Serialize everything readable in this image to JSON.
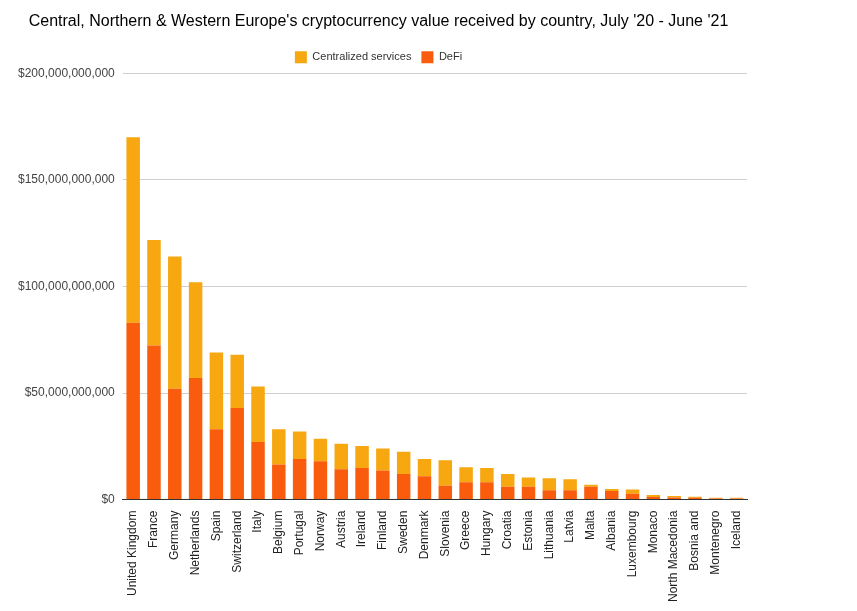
{
  "chart_data": {
    "type": "bar",
    "title": "Central, Northern & Western Europe's cryptocurrency value received by country, July '20 - June '21",
    "categories": [
      "United Kingdom",
      "France",
      "Germany",
      "Netherlands",
      "Spain",
      "Switzerland",
      "Italy",
      "Belgium",
      "Portugal",
      "Norway",
      "Austria",
      "Ireland",
      "Finland",
      "Sweden",
      "Denmark",
      "Slovenia",
      "Greece",
      "Hungary",
      "Croatia",
      "Estonia",
      "Lithuania",
      "Latvia",
      "Malta",
      "Albania",
      "Luxembourg",
      "Monaco",
      "North Macedonia",
      "Bosnia and",
      "Montenegro",
      "Iceland"
    ],
    "series": [
      {
        "name": "Centralized services",
        "color": "#F7A70F",
        "values": [
          87000000000,
          49500000000,
          62000000000,
          45000000000,
          36000000000,
          25000000000,
          26000000000,
          16500000000,
          13000000000,
          10500000000,
          12000000000,
          10400000000,
          10300000000,
          10500000000,
          8000000000,
          12000000000,
          7000000000,
          6600000000,
          6000000000,
          4400000000,
          5600000000,
          5100000000,
          1000000000,
          1000000000,
          2000000000,
          1000000000,
          700000000,
          500000000,
          400000000,
          400000000
        ]
      },
      {
        "name": "DeFi",
        "color": "#F95C0C",
        "values": [
          83000000000,
          72300000000,
          52000000000,
          57000000000,
          33000000000,
          43000000000,
          27000000000,
          16500000000,
          19000000000,
          18000000000,
          14200000000,
          14800000000,
          13700000000,
          12000000000,
          11000000000,
          6500000000,
          8200000000,
          8200000000,
          6000000000,
          6000000000,
          4400000000,
          4400000000,
          6000000000,
          4000000000,
          2800000000,
          1200000000,
          1000000000,
          900000000,
          500000000,
          500000000
        ]
      }
    ],
    "ylim": [
      0,
      200000000000
    ],
    "yticks": [
      {
        "value": 0,
        "label": "$0"
      },
      {
        "value": 50000000000,
        "label": "$50,000,000,000"
      },
      {
        "value": 100000000000,
        "label": "$100,000,000,000"
      },
      {
        "value": 150000000000,
        "label": "$150,000,000,000"
      },
      {
        "value": 200000000000,
        "label": "$200,000,000,000"
      }
    ],
    "stacked": true,
    "grid": true,
    "legend": "top"
  }
}
